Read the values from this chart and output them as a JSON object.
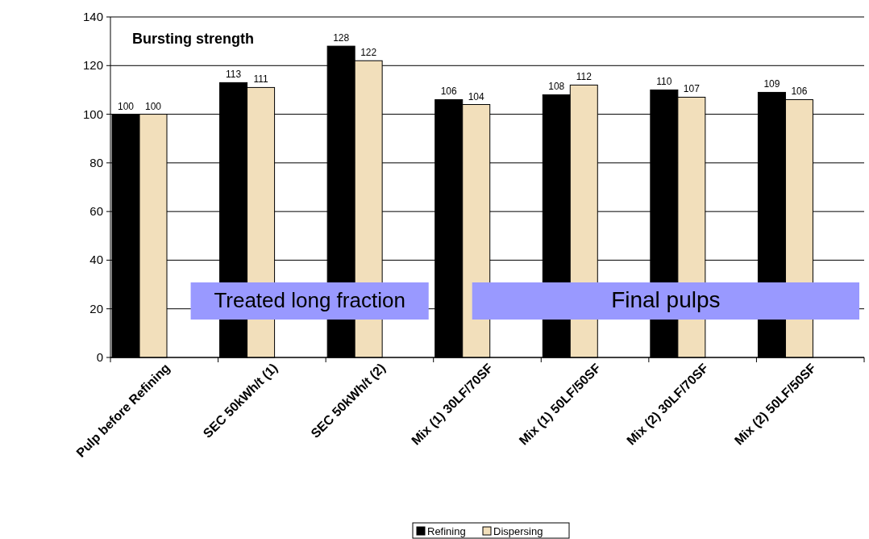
{
  "chart_data": {
    "type": "bar",
    "title": "Bursting strength",
    "categories": [
      "Pulp before Refining",
      "SEC 50kWh/t (1)",
      "SEC 50kWh/t (2)",
      "Mix (1) 30LF/70SF",
      "Mix (1) 50LF/50SF",
      "Mix (2) 30LF/70SF",
      "Mix (2) 50LF/50SF"
    ],
    "series": [
      {
        "name": "Refining",
        "color": "#000000",
        "values": [
          100,
          113,
          128,
          106,
          108,
          110,
          109
        ]
      },
      {
        "name": "Dispersing",
        "color": "#f2dfbb",
        "values": [
          100,
          111,
          122,
          104,
          112,
          107,
          106
        ]
      }
    ],
    "ylim": [
      0,
      140
    ],
    "yticks": [
      0,
      20,
      40,
      60,
      80,
      100,
      120,
      140
    ],
    "grid": "y",
    "legend": "bottom",
    "data_labels": true,
    "annotations": [
      "Treated long fraction",
      "Final pulps"
    ]
  }
}
